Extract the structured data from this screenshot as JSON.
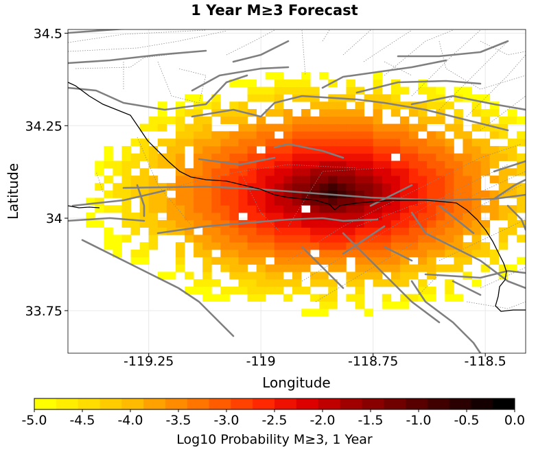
{
  "chart_data": {
    "type": "heatmap",
    "title": "1 Year M≥3 Forecast",
    "xlabel": "Longitude",
    "ylabel": "Latitude",
    "xlim": [
      -119.43,
      -118.41
    ],
    "ylim": [
      33.635,
      34.51
    ],
    "xticks": [
      -119.25,
      -119,
      -118.75,
      -118.5
    ],
    "xtick_labels": [
      "-119.25",
      "-119",
      "-118.75",
      "-118.5"
    ],
    "yticks": [
      34.5,
      34.25,
      34.0,
      33.75
    ],
    "ytick_labels": [
      "34.5",
      "34.25",
      "34",
      "33.75"
    ],
    "grid": true,
    "colorbar": {
      "label": "Log10 Probability M≥3, 1 Year",
      "min": -5.0,
      "max": 0.0,
      "ticks": [
        -5.0,
        -4.5,
        -4.0,
        -3.5,
        -3.0,
        -2.5,
        -2.0,
        -1.5,
        -1.0,
        -0.5,
        0.0
      ],
      "tick_labels": [
        "-5.0",
        "-4.5",
        "-4.0",
        "-3.5",
        "-3.0",
        "-2.5",
        "-2.0",
        "-1.5",
        "-1.0",
        "-0.5",
        "0.0"
      ],
      "colors": [
        "#ffff00",
        "#ffee00",
        "#ffdd00",
        "#ffcc00",
        "#ffbb00",
        "#ffa200",
        "#ff8c00",
        "#ff7500",
        "#ff5c00",
        "#ff4200",
        "#ff2800",
        "#ee1000",
        "#dd0000",
        "#c00000",
        "#a00000",
        "#880000",
        "#700000",
        "#580000",
        "#400000",
        "#2a0000",
        "#140000",
        "#000000"
      ]
    },
    "cell_size_deg": 0.02,
    "peak": {
      "lon": -118.84,
      "lat": 34.07,
      "value": -0.2
    },
    "grid_cells_note_free": true
  }
}
